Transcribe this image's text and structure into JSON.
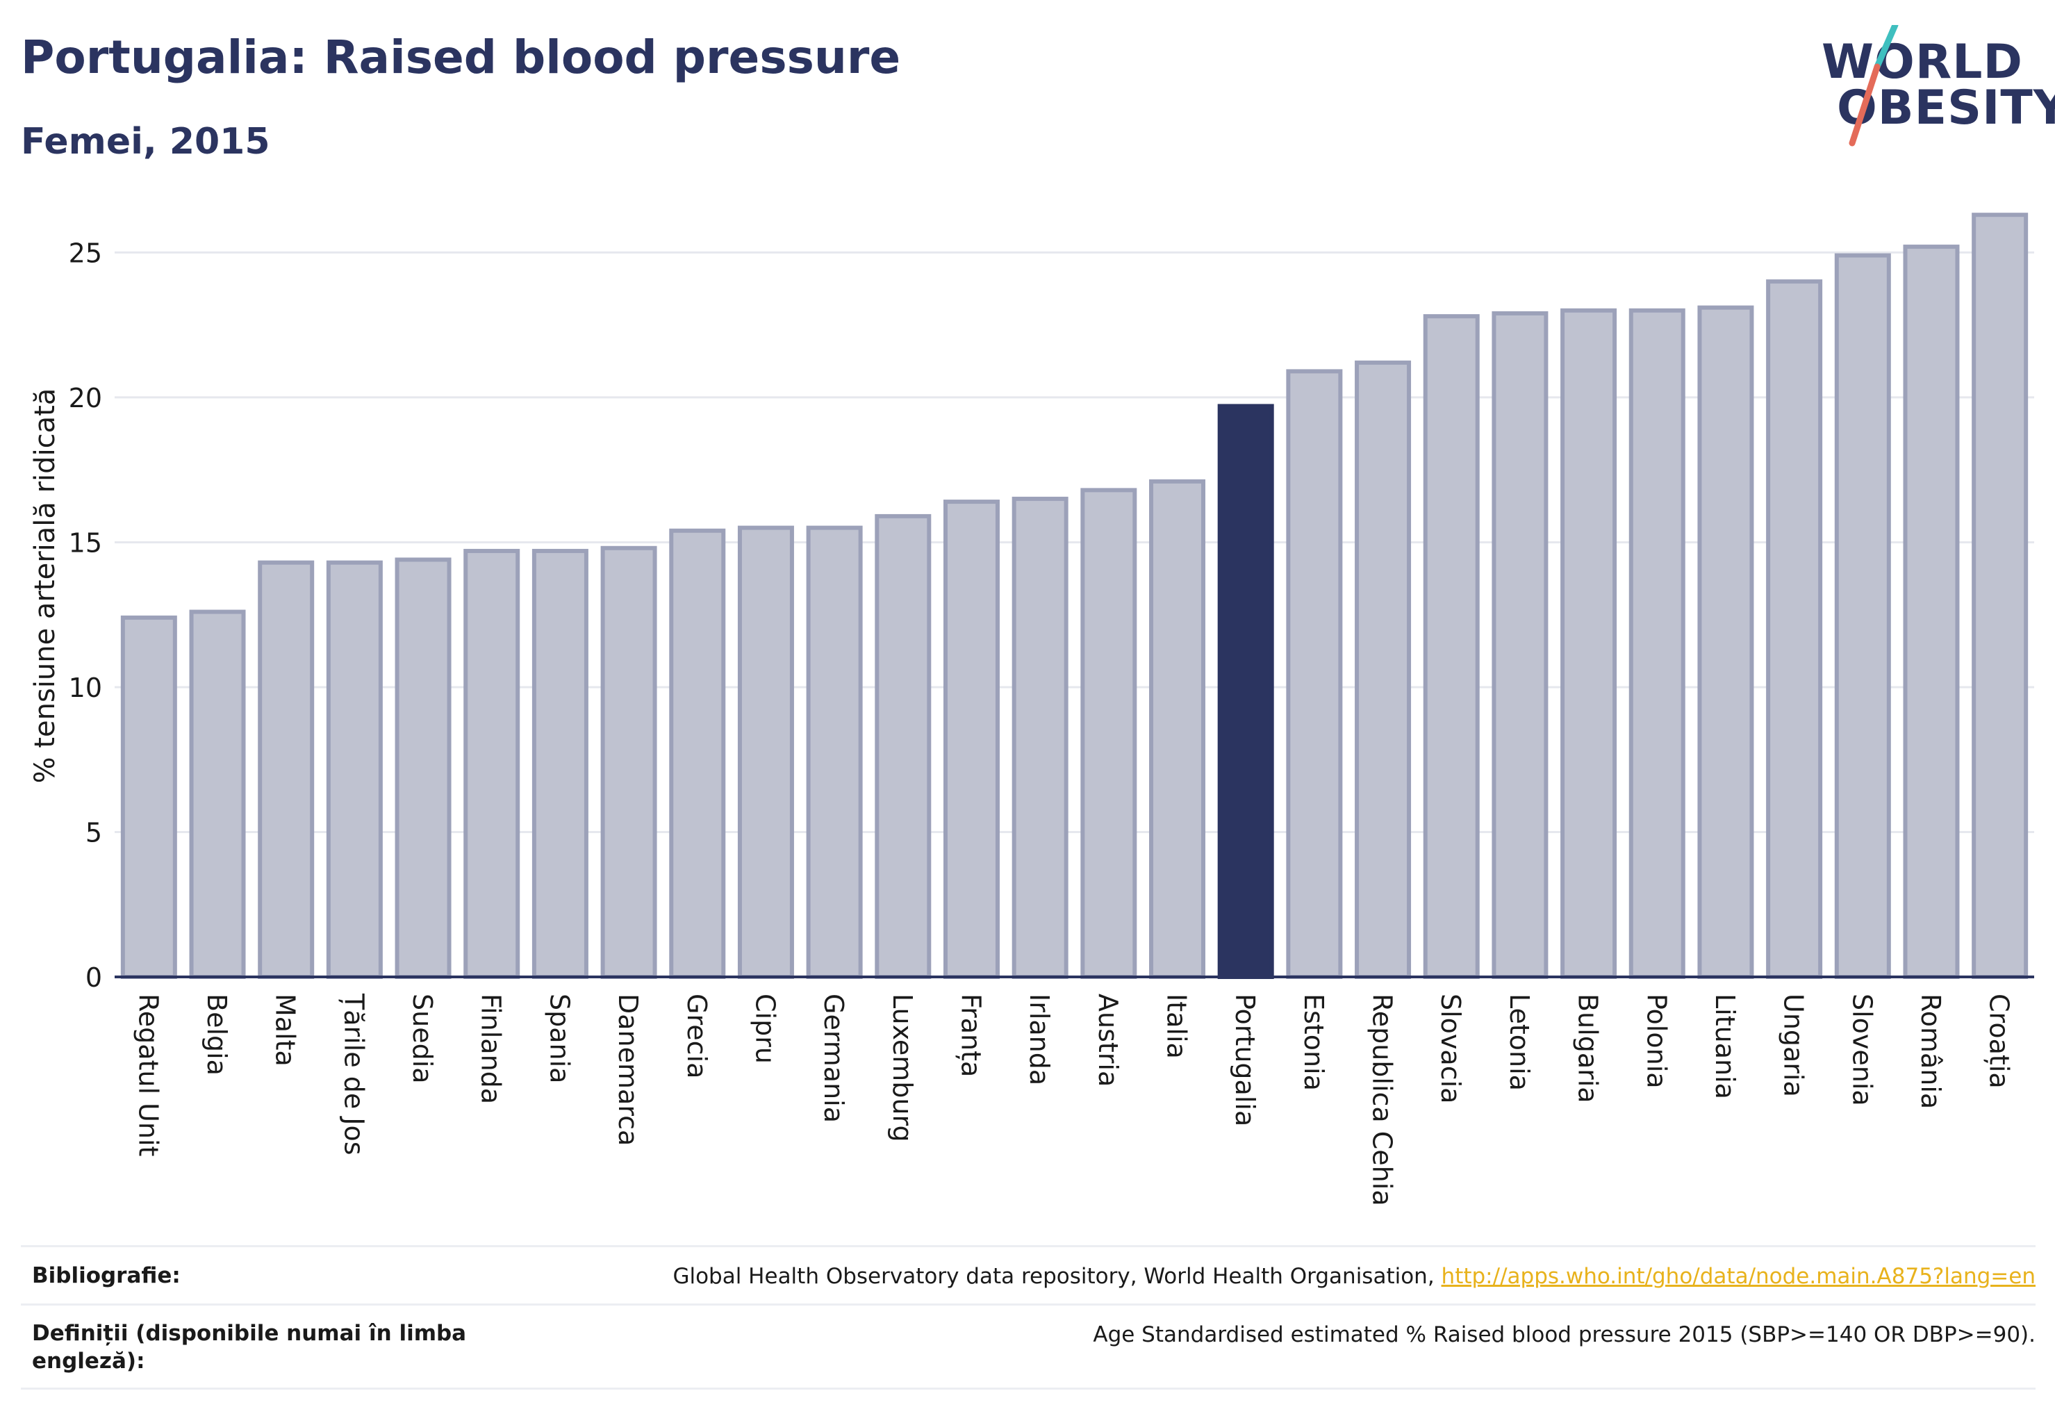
{
  "header": {
    "title": "Portugalia: Raised blood pressure",
    "subtitle": "Femei, 2015"
  },
  "logo": {
    "line1": "WORLD",
    "line2": "OBESITY"
  },
  "colors": {
    "bar": "#bfc2d0",
    "bar_stroke": "#9ca1b9",
    "highlight": "#2b3460",
    "grid": "#e6e8ee",
    "text": "#1a1a1a",
    "title": "#2b3460",
    "link": "#e8b21c"
  },
  "chart_data": {
    "type": "bar",
    "ylabel": "% tensiune arterială ridicată",
    "xlabel": "",
    "ylim": [
      0,
      27
    ],
    "yticks": [
      0,
      5,
      10,
      15,
      20,
      25
    ],
    "grid": true,
    "highlight": "Portugalia",
    "categories": [
      "Regatul Unit",
      "Belgia",
      "Malta",
      "Țările de Jos",
      "Suedia",
      "Finlanda",
      "Spania",
      "Danemarca",
      "Grecia",
      "Cipru",
      "Germania",
      "Luxemburg",
      "Franța",
      "Irlanda",
      "Austria",
      "Italia",
      "Portugalia",
      "Estonia",
      "Republica Cehia",
      "Slovacia",
      "Letonia",
      "Bulgaria",
      "Polonia",
      "Lituania",
      "Ungaria",
      "Slovenia",
      "România",
      "Croația"
    ],
    "values": [
      12.4,
      12.6,
      14.3,
      14.3,
      14.4,
      14.7,
      14.7,
      14.8,
      15.4,
      15.5,
      15.5,
      15.9,
      16.4,
      16.5,
      16.8,
      17.1,
      19.7,
      20.9,
      21.2,
      22.8,
      22.9,
      23.0,
      23.0,
      23.1,
      24.0,
      24.9,
      25.2,
      26.3
    ]
  },
  "footer": {
    "bibliography_label": "Bibliografie:",
    "bibliography_text": "Global Health Observatory data repository, World Health Organisation, ",
    "bibliography_link": "http://apps.who.int/gho/data/node.main.A875?lang=en",
    "definitions_label": "Definiții (disponibile numai în limba engleză):",
    "definitions_text": "Age Standardised estimated % Raised blood pressure 2015 (SBP>=140 OR DBP>=90)."
  }
}
